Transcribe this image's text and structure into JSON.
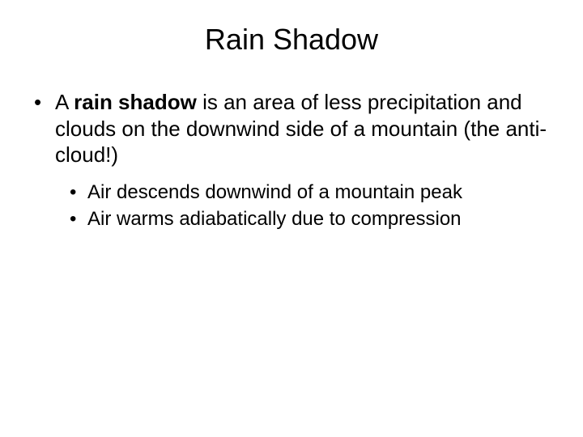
{
  "title": "Rain Shadow",
  "main_bullet": {
    "prefix": "A ",
    "bold_term": "rain shadow",
    "suffix": " is an area of less precipitation and clouds on the downwind side of a mountain (the anti-cloud!)"
  },
  "sub_bullets": [
    "Air descends downwind of a mountain peak",
    "Air warms adiabatically due to compression"
  ],
  "styling": {
    "background_color": "#ffffff",
    "text_color": "#000000",
    "title_fontsize": 36,
    "main_fontsize": 26,
    "sub_fontsize": 24,
    "font_family": "Arial"
  }
}
